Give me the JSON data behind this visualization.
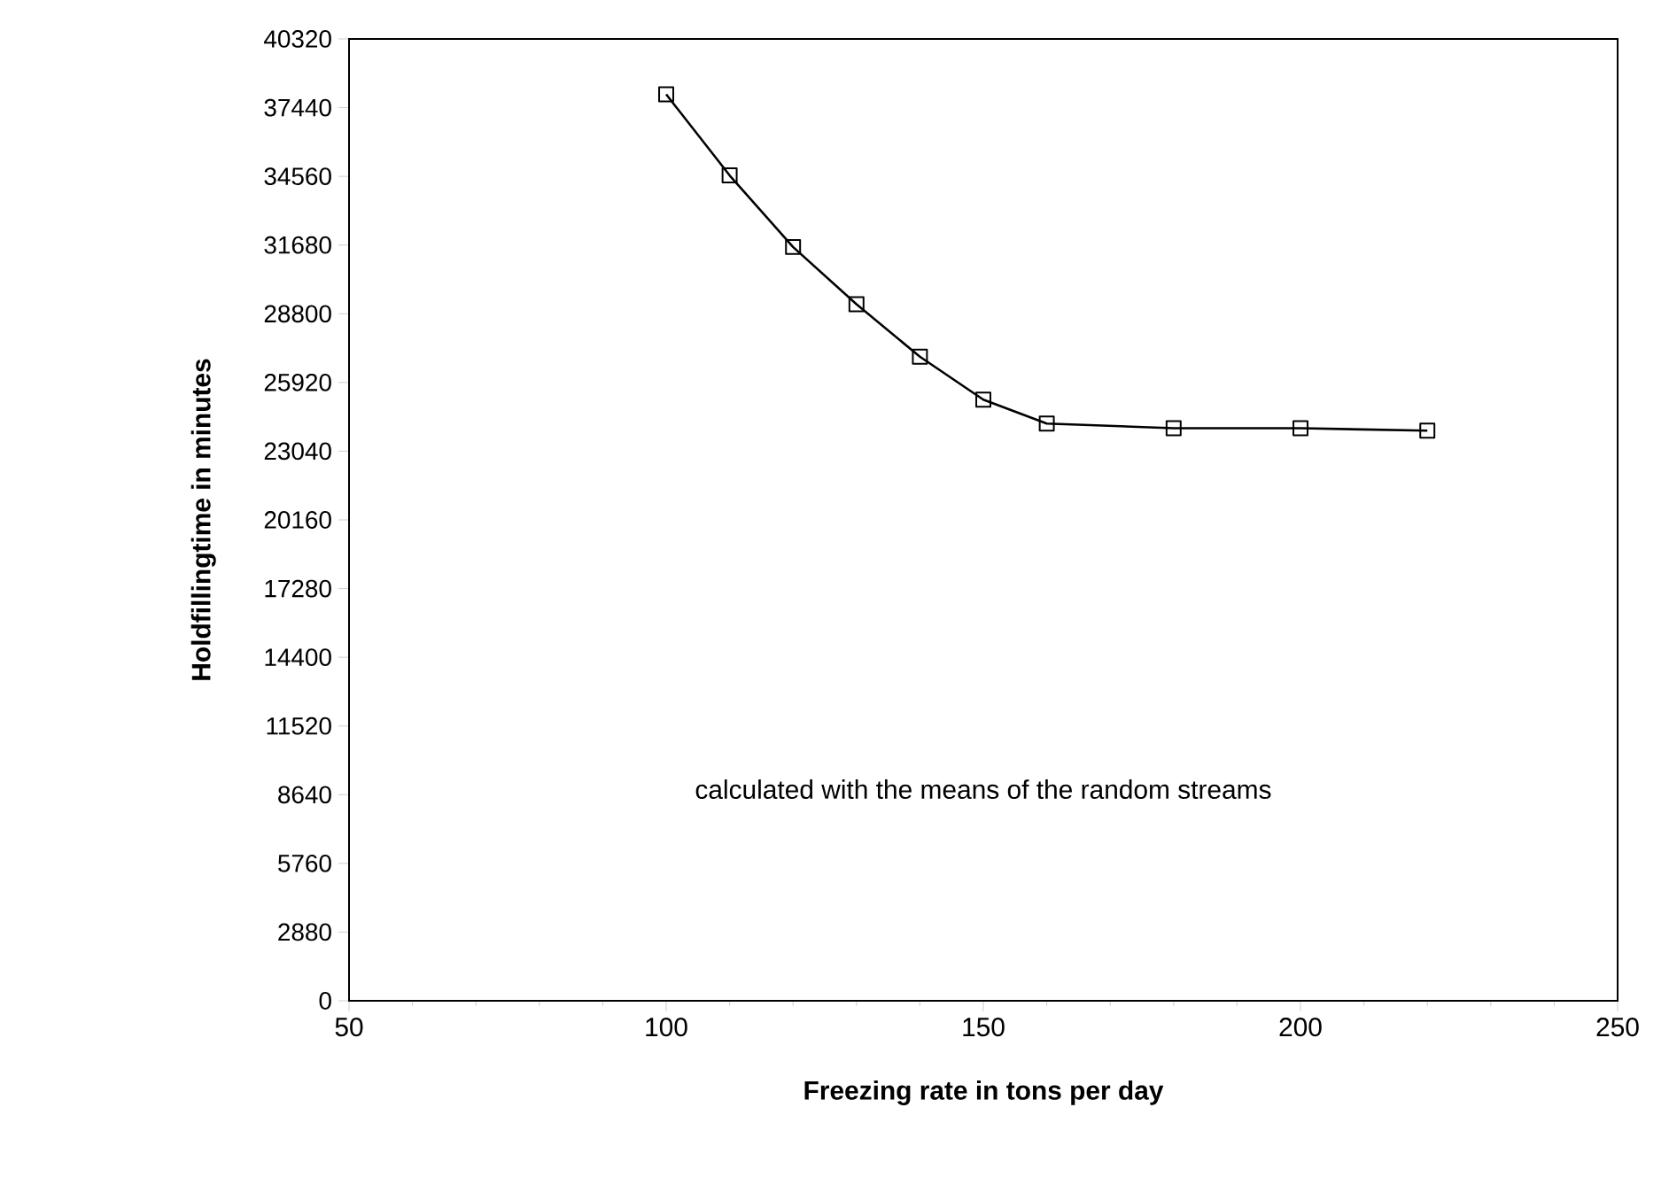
{
  "chart_data": {
    "type": "line",
    "xlabel": "Freezing rate in tons per day",
    "ylabel": "Holdfillingtime in minutes",
    "annotations": [
      "calculated with the means of the random streams"
    ],
    "x": [
      100,
      110,
      120,
      130,
      140,
      150,
      160,
      180,
      200,
      220
    ],
    "values": [
      38000,
      34600,
      31600,
      29200,
      27000,
      25200,
      24200,
      24000,
      24000,
      23900
    ],
    "color": "#000000",
    "marker": "square",
    "line_style": "solid",
    "grid": false,
    "xlim": [
      50,
      250
    ],
    "xticks": [
      50,
      100,
      150,
      200,
      250
    ],
    "ylim": [
      0,
      40320
    ],
    "yticks": [
      0,
      2880,
      5760,
      8640,
      11520,
      14400,
      17280,
      20160,
      23040,
      25920,
      28800,
      31680,
      34560,
      37440,
      40320
    ]
  }
}
